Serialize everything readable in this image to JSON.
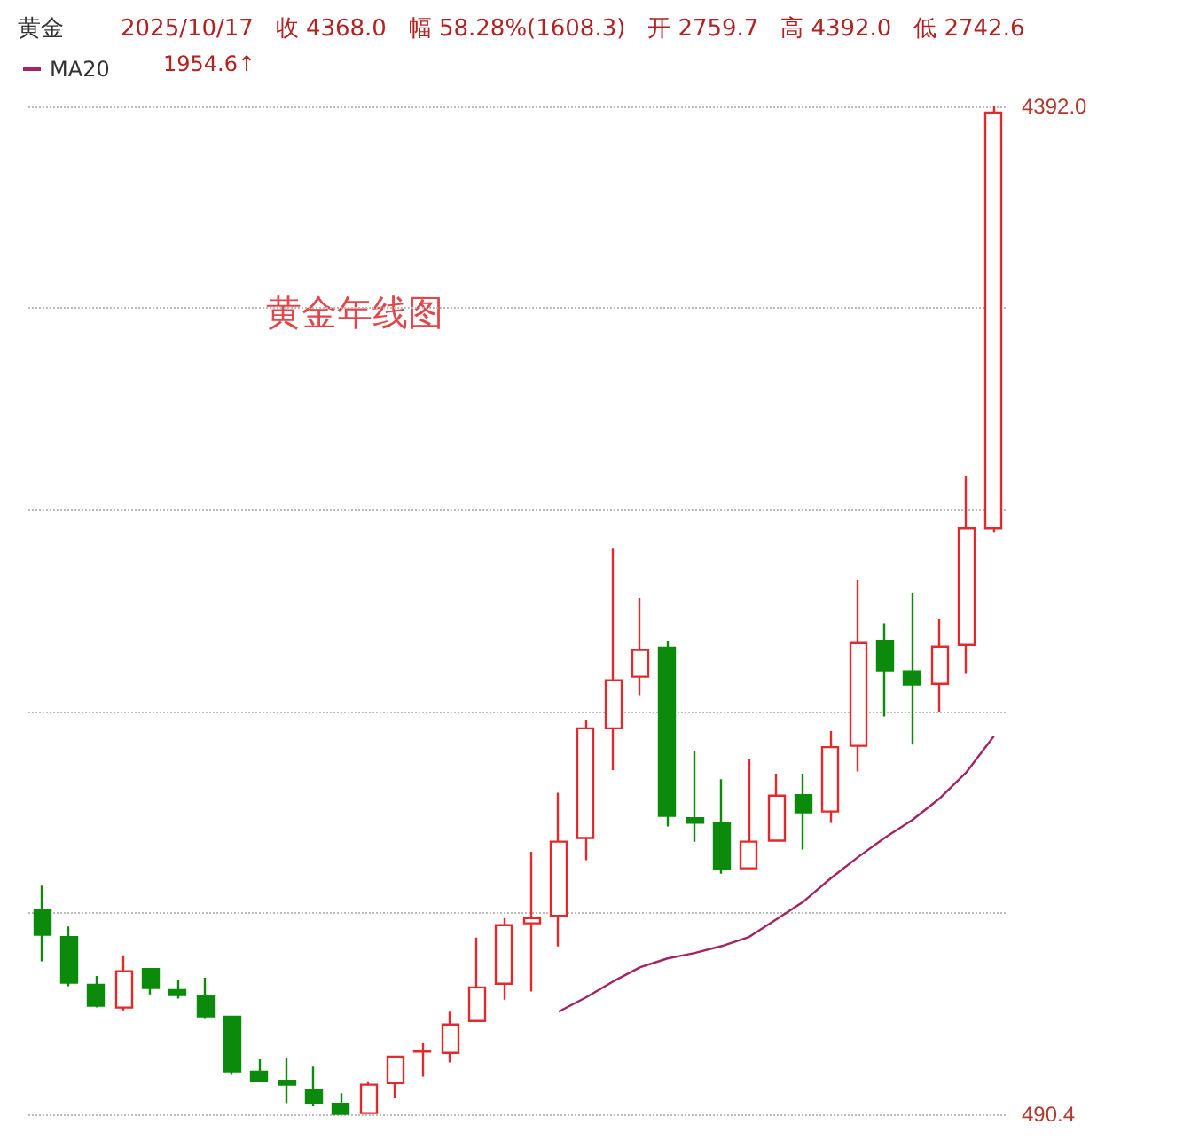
{
  "chart_data": {
    "type": "candlestick",
    "title": "黄金",
    "subtitle": "2025/10/17   收 4368.0   幅 58.28%(1608.3)   开 2759.7   高 4392.0   低 2742.6",
    "categories": [
      null,
      null,
      null,
      null,
      null,
      null,
      null,
      null,
      null,
      null,
      null,
      null,
      null,
      null,
      null,
      null,
      null,
      null,
      null,
      null,
      null,
      null,
      null,
      null,
      null,
      null,
      null,
      null,
      null,
      null,
      null,
      null,
      null,
      null,
      null,
      null
    ],
    "ohlc": [
      [
        1280,
        1376,
        1083,
        1186
      ],
      [
        1177,
        1218,
        987,
        1000
      ],
      [
        992,
        1026,
        904,
        911
      ],
      [
        904,
        1106,
        893,
        1044
      ],
      [
        1053,
        1053,
        955,
        980
      ],
      [
        971,
        1012,
        939,
        952
      ],
      [
        950,
        1019,
        863,
        870
      ],
      [
        868,
        868,
        643,
        657
      ],
      [
        655,
        703,
        618,
        622
      ],
      [
        620,
        710,
        533,
        605
      ],
      [
        586,
        675,
        522,
        536
      ],
      [
        531,
        572,
        490.4,
        492
      ],
      [
        495,
        618,
        495,
        605
      ],
      [
        611,
        714,
        554,
        714
      ],
      [
        733,
        769,
        636,
        737
      ],
      [
        728,
        888,
        691,
        838
      ],
      [
        852,
        1175,
        852,
        982
      ],
      [
        996,
        1250,
        934,
        1223
      ],
      [
        1230,
        1507,
        966,
        1250
      ],
      [
        1259,
        1735,
        1140,
        1546
      ],
      [
        1560,
        2015,
        1474,
        1985
      ],
      [
        1985,
        2681,
        1823,
        2171
      ],
      [
        2185,
        2489,
        2113,
        2288
      ],
      [
        2297,
        2324,
        1605,
        1646
      ],
      [
        1637,
        1896,
        1546,
        1619
      ],
      [
        1617,
        1788,
        1422,
        1440
      ],
      [
        1443,
        1864,
        1443,
        1546
      ],
      [
        1550,
        1809,
        1546,
        1724
      ],
      [
        1726,
        1809,
        1516,
        1660
      ],
      [
        1663,
        1974,
        1619,
        1912
      ],
      [
        1917,
        2558,
        1818,
        2315
      ],
      [
        2324,
        2391,
        2031,
        2209
      ],
      [
        2205,
        2510,
        1922,
        2154
      ],
      [
        2157,
        2407,
        2046,
        2301
      ],
      [
        2308,
        2961,
        2196,
        2760
      ],
      [
        2759.7,
        4392.0,
        2742.6,
        4368.0
      ]
    ],
    "colors": [
      "#0b8a0b",
      "#0b8a0b",
      "#0b8a0b",
      "#e02a2e",
      "#0b8a0b",
      "#0b8a0b",
      "#0b8a0b",
      "#0b8a0b",
      "#0b8a0b",
      "#0b8a0b",
      "#0b8a0b",
      "#0b8a0b",
      "#e02a2e",
      "#e02a2e",
      "#e02a2e",
      "#e02a2e",
      "#e02a2e",
      "#e02a2e",
      "#e02a2e",
      "#e02a2e",
      "#e02a2e",
      "#e02a2e",
      "#e02a2e",
      "#0b8a0b",
      "#0b8a0b",
      "#0b8a0b",
      "#e02a2e",
      "#e02a2e",
      "#0b8a0b",
      "#e02a2e",
      "#e02a2e",
      "#0b8a0b",
      "#0b8a0b",
      "#e02a2e",
      "#e02a2e",
      "#e02a2e"
    ],
    "series": [
      {
        "name": "MA20",
        "type": "line",
        "color": "#a3245e",
        "values": [
          null,
          null,
          null,
          null,
          null,
          null,
          null,
          null,
          null,
          null,
          null,
          null,
          null,
          null,
          null,
          null,
          null,
          null,
          null,
          888,
          943,
          1005,
          1060,
          1094,
          1115,
          1142,
          1177,
          1245,
          1314,
          1404,
          1486,
          1562,
          1630,
          1713,
          1816,
          1954.6
        ]
      }
    ],
    "yticks": [
      {
        "value": 490.4,
        "label": "490.4"
      },
      {
        "value": 1270.7,
        "label": null
      },
      {
        "value": 2051.0,
        "label": null
      },
      {
        "value": 2831.2,
        "label": null
      },
      {
        "value": 3611.5,
        "label": null
      },
      {
        "value": 4392.0,
        "label": "4392.0"
      }
    ],
    "ylim": [
      490.4,
      4392.0
    ],
    "grid": "y",
    "tick_labels": "y",
    "legend": "top left",
    "marker": "none",
    "line_style": "solid",
    "annotations": [
      "黄金年线图",
      "1954.6↑"
    ]
  }
}
